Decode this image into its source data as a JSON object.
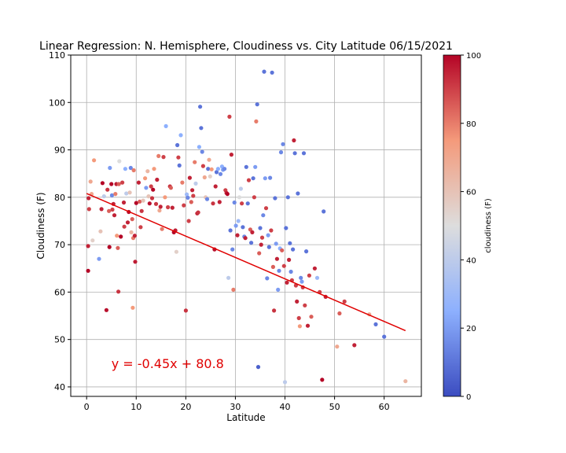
{
  "chart_data": {
    "type": "scatter",
    "title": "Linear Regression: N. Hemisphere, Cloudiness vs. City Latitude  06/15/2021",
    "xlabel": "Latitude",
    "ylabel": "Cloudiness (F)",
    "xlim": [
      -3.2,
      67.5
    ],
    "ylim": [
      38,
      110
    ],
    "xticks": [
      0,
      10,
      20,
      30,
      40,
      50,
      60
    ],
    "yticks": [
      40,
      50,
      60,
      70,
      80,
      90,
      100,
      110
    ],
    "grid": true,
    "colormap": "coolwarm",
    "colorbar": {
      "label": "cloudiness (F)",
      "range": [
        0,
        100
      ],
      "ticks": [
        0,
        20,
        40,
        60,
        80,
        100
      ]
    },
    "regression": {
      "slope": -0.45,
      "intercept": 80.8,
      "x_range": [
        0,
        64.3
      ],
      "color": "#e00000"
    },
    "annotation": {
      "text": "y = -0.45x + 80.8",
      "x": 5,
      "y": 45
    },
    "points": [
      [
        0.3,
        64.5,
        100
      ],
      [
        0.3,
        69.7,
        95
      ],
      [
        0.4,
        79.8,
        95
      ],
      [
        0.5,
        77.5,
        90
      ],
      [
        0.8,
        83.3,
        70
      ],
      [
        1.0,
        80.7,
        70
      ],
      [
        1.2,
        70.9,
        55
      ],
      [
        1.5,
        87.8,
        75
      ],
      [
        2.5,
        67.0,
        20
      ],
      [
        2.8,
        72.8,
        60
      ],
      [
        3.0,
        77.5,
        95
      ],
      [
        3.2,
        83.0,
        100
      ],
      [
        3.5,
        80.2,
        40
      ],
      [
        4.0,
        56.2,
        98
      ],
      [
        4.2,
        81.6,
        92
      ],
      [
        4.5,
        77.1,
        85
      ],
      [
        4.6,
        69.5,
        100
      ],
      [
        4.7,
        86.2,
        20
      ],
      [
        5.0,
        82.8,
        100
      ],
      [
        5.1,
        80.4,
        15
      ],
      [
        5.2,
        77.4,
        90
      ],
      [
        5.4,
        78.6,
        95
      ],
      [
        5.6,
        76.2,
        95
      ],
      [
        5.8,
        80.7,
        80
      ],
      [
        6.0,
        82.8,
        96
      ],
      [
        6.1,
        71.9,
        75
      ],
      [
        6.3,
        69.3,
        85
      ],
      [
        6.4,
        60.1,
        92
      ],
      [
        6.5,
        82.8,
        85
      ],
      [
        6.6,
        87.6,
        50
      ],
      [
        6.9,
        71.7,
        100
      ],
      [
        7.2,
        83.1,
        90
      ],
      [
        7.5,
        78.9,
        95
      ],
      [
        7.6,
        73.8,
        90
      ],
      [
        7.8,
        86.0,
        25
      ],
      [
        8.0,
        80.8,
        40
      ],
      [
        8.3,
        74.7,
        95
      ],
      [
        8.5,
        76.9,
        98
      ],
      [
        8.7,
        81.0,
        60
      ],
      [
        8.9,
        86.2,
        15
      ],
      [
        9.0,
        72.6,
        65
      ],
      [
        9.2,
        75.4,
        85
      ],
      [
        9.3,
        56.7,
        75
      ],
      [
        9.4,
        71.4,
        80
      ],
      [
        9.5,
        85.7,
        80
      ],
      [
        9.7,
        71.9,
        95
      ],
      [
        9.8,
        66.4,
        96
      ],
      [
        10.0,
        78.8,
        100
      ],
      [
        10.5,
        83.1,
        95
      ],
      [
        10.7,
        79.1,
        85
      ],
      [
        10.9,
        73.7,
        90
      ],
      [
        11.1,
        77.1,
        92
      ],
      [
        11.4,
        79.3,
        60
      ],
      [
        11.8,
        84.0,
        75
      ],
      [
        12.0,
        82.0,
        20
      ],
      [
        12.3,
        85.5,
        65
      ],
      [
        12.5,
        80.2,
        60
      ],
      [
        12.7,
        78.7,
        98
      ],
      [
        13.0,
        82.3,
        90
      ],
      [
        13.2,
        79.8,
        92
      ],
      [
        13.4,
        81.6,
        100
      ],
      [
        13.6,
        86.0,
        75
      ],
      [
        14.0,
        78.6,
        92
      ],
      [
        14.2,
        83.7,
        95
      ],
      [
        14.5,
        88.7,
        80
      ],
      [
        14.7,
        77.2,
        70
      ],
      [
        14.9,
        78.0,
        95
      ],
      [
        15.2,
        73.3,
        80
      ],
      [
        15.5,
        88.5,
        90
      ],
      [
        15.8,
        80.0,
        75
      ],
      [
        16.0,
        95.0,
        25
      ],
      [
        16.4,
        77.9,
        90
      ],
      [
        16.8,
        82.3,
        92
      ],
      [
        17.0,
        82.0,
        85
      ],
      [
        17.3,
        77.8,
        95
      ],
      [
        17.6,
        72.6,
        100
      ],
      [
        17.9,
        73.0,
        96
      ],
      [
        18.1,
        68.5,
        55
      ],
      [
        18.3,
        91.0,
        10
      ],
      [
        18.5,
        88.4,
        90
      ],
      [
        18.7,
        86.7,
        10
      ],
      [
        19.0,
        93.1,
        25
      ],
      [
        19.3,
        83.1,
        80
      ],
      [
        19.6,
        78.3,
        90
      ],
      [
        20.0,
        56.1,
        92
      ],
      [
        20.2,
        80.6,
        30
      ],
      [
        20.4,
        79.9,
        15
      ],
      [
        20.6,
        75.0,
        90
      ],
      [
        20.8,
        84.1,
        95
      ],
      [
        21.1,
        79.0,
        85
      ],
      [
        21.3,
        81.5,
        95
      ],
      [
        21.5,
        80.3,
        90
      ],
      [
        21.8,
        87.4,
        80
      ],
      [
        22.0,
        82.9,
        40
      ],
      [
        22.3,
        76.6,
        95
      ],
      [
        22.5,
        76.8,
        92
      ],
      [
        22.7,
        90.6,
        25
      ],
      [
        22.9,
        99.1,
        10
      ],
      [
        23.1,
        94.6,
        10
      ],
      [
        23.3,
        89.6,
        15
      ],
      [
        23.5,
        86.6,
        90
      ],
      [
        23.8,
        84.2,
        70
      ],
      [
        24.0,
        80.0,
        60
      ],
      [
        24.3,
        79.6,
        15
      ],
      [
        24.5,
        86.0,
        10
      ],
      [
        24.7,
        87.9,
        70
      ],
      [
        24.9,
        84.4,
        55
      ],
      [
        25.2,
        85.9,
        75
      ],
      [
        25.5,
        78.7,
        92
      ],
      [
        25.8,
        69.0,
        98
      ],
      [
        26.0,
        82.3,
        95
      ],
      [
        26.2,
        85.3,
        10
      ],
      [
        26.5,
        86.0,
        25
      ],
      [
        26.8,
        79.0,
        95
      ],
      [
        27.0,
        84.9,
        15
      ],
      [
        27.3,
        86.5,
        25
      ],
      [
        27.5,
        85.8,
        20
      ],
      [
        27.8,
        86.0,
        15
      ],
      [
        28.0,
        81.5,
        90
      ],
      [
        28.2,
        80.9,
        95
      ],
      [
        28.4,
        80.7,
        100
      ],
      [
        28.6,
        63.0,
        40
      ],
      [
        28.8,
        97.0,
        90
      ],
      [
        29.0,
        73.0,
        10
      ],
      [
        29.2,
        89.0,
        95
      ],
      [
        29.4,
        69.0,
        15
      ],
      [
        29.6,
        60.5,
        80
      ],
      [
        29.8,
        78.9,
        15
      ],
      [
        30.1,
        74.0,
        20
      ],
      [
        30.4,
        72.0,
        95
      ],
      [
        30.6,
        75.0,
        30
      ],
      [
        30.8,
        80.0,
        50
      ],
      [
        31.1,
        81.8,
        40
      ],
      [
        31.3,
        78.7,
        90
      ],
      [
        31.5,
        73.7,
        10
      ],
      [
        31.8,
        71.7,
        15
      ],
      [
        32.0,
        71.4,
        95
      ],
      [
        32.2,
        86.4,
        10
      ],
      [
        32.5,
        78.7,
        10
      ],
      [
        32.7,
        83.6,
        90
      ],
      [
        33.0,
        73.2,
        85
      ],
      [
        33.2,
        70.4,
        10
      ],
      [
        33.4,
        72.6,
        95
      ],
      [
        33.6,
        84.0,
        10
      ],
      [
        33.8,
        80.0,
        90
      ],
      [
        34.0,
        86.4,
        20
      ],
      [
        34.2,
        96.0,
        80
      ],
      [
        34.4,
        99.6,
        10
      ],
      [
        34.6,
        44.2,
        5
      ],
      [
        34.8,
        68.2,
        85
      ],
      [
        35.0,
        73.5,
        10
      ],
      [
        35.2,
        70.0,
        95
      ],
      [
        35.4,
        71.5,
        90
      ],
      [
        35.6,
        76.2,
        15
      ],
      [
        35.8,
        106.5,
        10
      ],
      [
        36.0,
        84.0,
        20
      ],
      [
        36.2,
        77.7,
        90
      ],
      [
        36.4,
        62.9,
        15
      ],
      [
        36.6,
        72.0,
        20
      ],
      [
        36.8,
        69.5,
        10
      ],
      [
        37.0,
        84.1,
        15
      ],
      [
        37.2,
        73.0,
        90
      ],
      [
        37.4,
        106.3,
        10
      ],
      [
        37.6,
        65.3,
        85
      ],
      [
        37.8,
        56.1,
        92
      ],
      [
        38.0,
        79.8,
        10
      ],
      [
        38.2,
        70.2,
        20
      ],
      [
        38.4,
        67.0,
        95
      ],
      [
        38.6,
        60.5,
        20
      ],
      [
        38.8,
        64.5,
        15
      ],
      [
        39.0,
        69.2,
        25
      ],
      [
        39.2,
        89.5,
        15
      ],
      [
        39.4,
        68.8,
        85
      ],
      [
        39.6,
        91.2,
        15
      ],
      [
        39.8,
        65.5,
        90
      ],
      [
        40.0,
        41.0,
        40
      ],
      [
        40.2,
        73.5,
        10
      ],
      [
        40.4,
        62.0,
        95
      ],
      [
        40.6,
        80.0,
        10
      ],
      [
        40.8,
        66.8,
        95
      ],
      [
        41.0,
        70.3,
        10
      ],
      [
        41.2,
        64.3,
        15
      ],
      [
        41.4,
        62.5,
        90
      ],
      [
        41.6,
        69.0,
        10
      ],
      [
        41.8,
        92.0,
        95
      ],
      [
        42.0,
        89.3,
        10
      ],
      [
        42.2,
        61.4,
        90
      ],
      [
        42.4,
        58.0,
        95
      ],
      [
        42.6,
        80.8,
        10
      ],
      [
        42.8,
        54.5,
        90
      ],
      [
        43.0,
        52.8,
        75
      ],
      [
        43.2,
        63.0,
        15
      ],
      [
        43.4,
        62.2,
        20
      ],
      [
        43.6,
        61.0,
        90
      ],
      [
        43.8,
        89.3,
        10
      ],
      [
        44.0,
        57.2,
        90
      ],
      [
        44.3,
        68.6,
        10
      ],
      [
        44.6,
        52.9,
        95
      ],
      [
        44.9,
        63.5,
        90
      ],
      [
        45.3,
        54.8,
        85
      ],
      [
        46.0,
        65.0,
        95
      ],
      [
        46.5,
        63.0,
        30
      ],
      [
        47.0,
        60.0,
        90
      ],
      [
        47.5,
        41.5,
        100
      ],
      [
        47.8,
        77.0,
        10
      ],
      [
        48.2,
        59.0,
        95
      ],
      [
        50.5,
        48.5,
        70
      ],
      [
        51.0,
        55.5,
        85
      ],
      [
        52.0,
        58.0,
        90
      ],
      [
        54.0,
        48.8,
        95
      ],
      [
        57.0,
        55.3,
        70
      ],
      [
        58.3,
        53.2,
        10
      ],
      [
        60.0,
        50.6,
        10
      ],
      [
        64.3,
        41.2,
        65
      ]
    ]
  }
}
